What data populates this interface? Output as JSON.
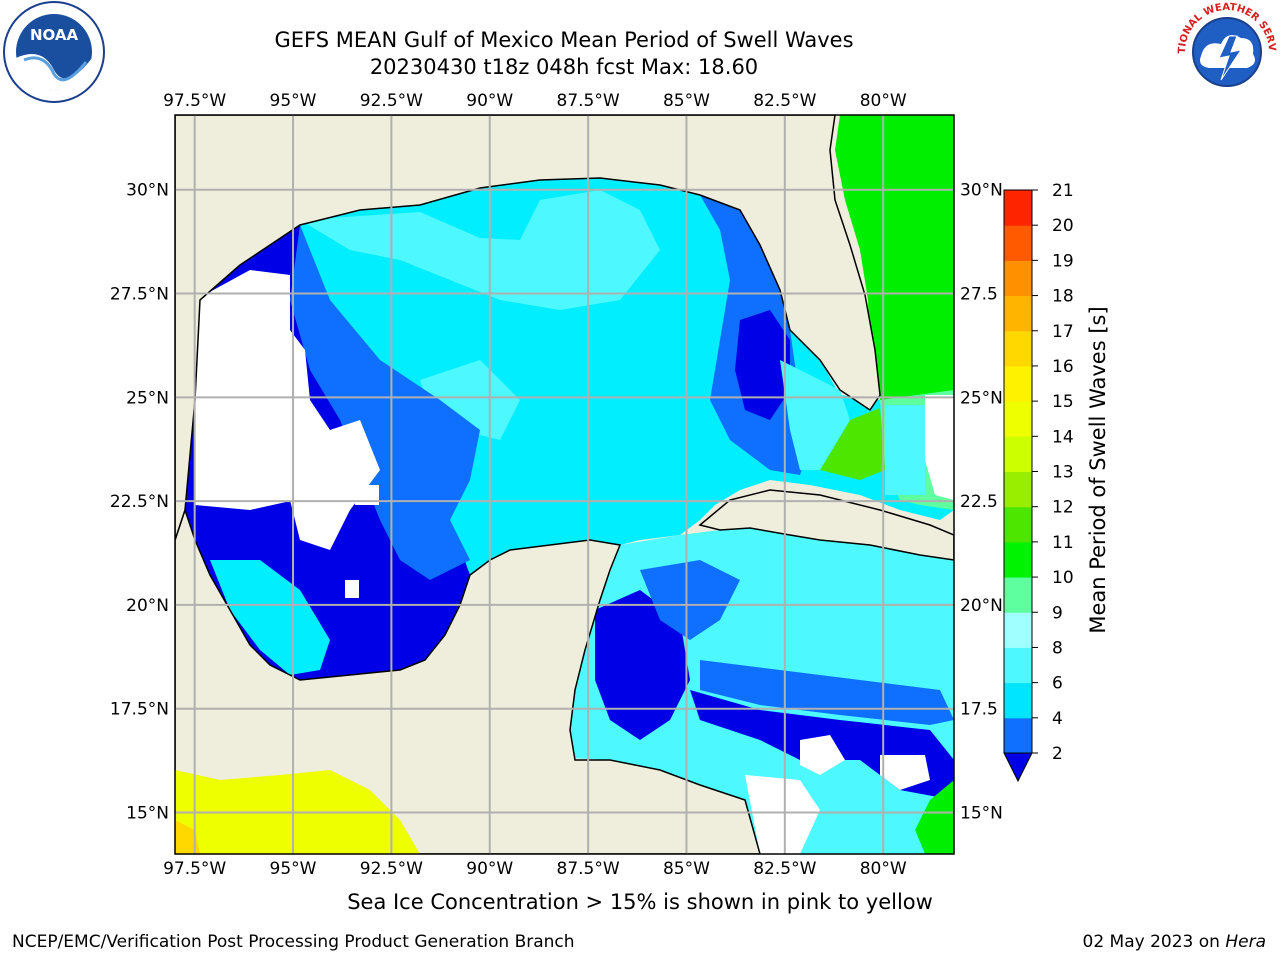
{
  "header": {
    "title_line1": "GEFS MEAN Gulf of Mexico Mean Period of Swell Waves",
    "title_line2": "20230430 t18z 048h fcst   Max: 18.60"
  },
  "logos": {
    "left": {
      "icon": "noaa-logo-icon",
      "text": "NOAA"
    },
    "right": {
      "icon": "nws-logo-icon",
      "text": "NATIONAL WEATHER SERVICE"
    }
  },
  "chart_data": {
    "type": "heatmap",
    "title": "GEFS MEAN Gulf of Mexico Mean Period of Swell Waves",
    "x_ticks": [
      "97.5°W",
      "95°W",
      "92.5°W",
      "90°W",
      "87.5°W",
      "85°W",
      "82.5°W",
      "80°W"
    ],
    "x_tick_values": [
      -97.5,
      -95,
      -92.5,
      -90,
      -87.5,
      -85,
      -82.5,
      -80
    ],
    "y_ticks": [
      "30°N",
      "27.5°N",
      "25°N",
      "22.5°N",
      "20°N",
      "17.5°N",
      "15°N"
    ],
    "y_ticks_right": [
      "30°N",
      "27.5",
      "25°N",
      "22.5",
      "20°N",
      "17.5",
      "15°N"
    ],
    "y_tick_values": [
      30,
      27.5,
      25,
      22.5,
      20,
      17.5,
      15
    ],
    "xlim": [
      -98,
      -78.2
    ],
    "ylim": [
      14,
      31.8
    ],
    "grid": true,
    "colorbar": {
      "label": "Mean Period of Swell Waves [s]",
      "ticks": [
        2,
        4,
        6,
        8,
        9,
        10,
        11,
        12,
        13,
        14,
        15,
        16,
        17,
        18,
        19,
        20,
        21
      ],
      "colors": [
        "#0f6fff",
        "#00e5ff",
        "#4df8ff",
        "#a0ffff",
        "#5dff9e",
        "#00f300",
        "#4ce600",
        "#99ee00",
        "#ccff00",
        "#eeff00",
        "#fff200",
        "#ffd800",
        "#ffb400",
        "#ff9000",
        "#ff5a00",
        "#ff2400"
      ],
      "under_color": "#0000e6"
    },
    "regions": [
      {
        "name": "gulf-center",
        "period": 5
      },
      {
        "name": "western-gulf",
        "period": 3
      },
      {
        "name": "bay-of-campeche",
        "period": 4
      },
      {
        "name": "yucatan-channel",
        "period": 3
      },
      {
        "name": "caribbean",
        "period": 5
      },
      {
        "name": "atlantic-florida",
        "period": 10
      },
      {
        "name": "pacific",
        "period": 15
      }
    ]
  },
  "footer": {
    "ice_note": "Sea Ice Concentration > 15% is shown in pink to yellow",
    "org": "NCEP/EMC/Verification Post Processing Product Generation Branch",
    "date": "02 May 2023 on ",
    "machine": "Hera"
  }
}
